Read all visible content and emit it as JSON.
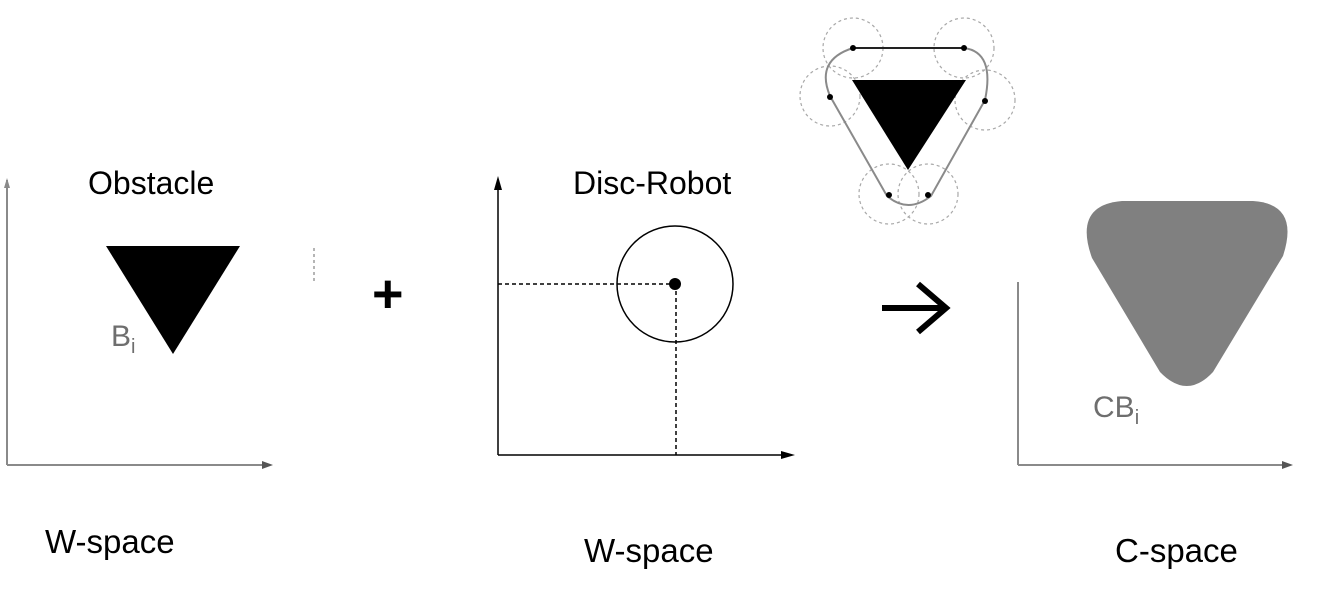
{
  "panels": {
    "obstacle": {
      "title": "Obstacle",
      "symbol_main": "B",
      "symbol_sub": "i",
      "space_label": "W-space"
    },
    "robot": {
      "title": "Disc-Robot",
      "space_label": "W-space"
    },
    "cspace": {
      "symbol_main": "CB",
      "symbol_sub": "i",
      "space_label": "C-space"
    }
  },
  "operators": {
    "plus": "+",
    "arrow": "→"
  },
  "colors": {
    "obstacle_fill": "#000000",
    "cspace_fill": "#808080",
    "axis_gray": "#8a8a8a",
    "guide_circle": "#a8a8a8"
  }
}
